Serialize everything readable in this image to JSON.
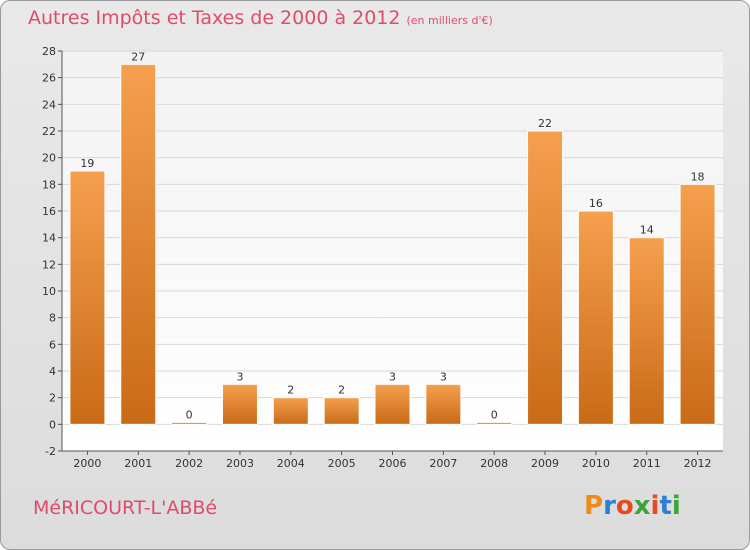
{
  "header": {
    "title": "Autres Impôts et Taxes de 2000 à 2012",
    "unit": "(en milliers d'€)"
  },
  "footer": {
    "commune": "MéRICOURT-L'ABBé",
    "logo": [
      "P",
      "r",
      "o",
      "x",
      "i",
      "t",
      "i"
    ]
  },
  "colors": {
    "bar_fill_top": "#f5a04f",
    "bar_fill_bottom": "#c96a16",
    "title": "#e04b6b",
    "logo": [
      "#f08a1c",
      "#2e7fd1",
      "#e9491f",
      "#3aa63a",
      "#e9491f",
      "#2e7fd1",
      "#3aa63a"
    ]
  },
  "chart_data": {
    "type": "bar",
    "categories": [
      "2000",
      "2001",
      "2002",
      "2003",
      "2004",
      "2005",
      "2006",
      "2007",
      "2008",
      "2009",
      "2010",
      "2011",
      "2012"
    ],
    "values": [
      19,
      27,
      0,
      3,
      2,
      2,
      3,
      3,
      0,
      22,
      16,
      14,
      18
    ],
    "title": "Autres Impôts et Taxes de 2000 à 2012",
    "subtitle": "(en milliers d'€)",
    "ylim": [
      -2,
      28
    ],
    "yticks": [
      -2,
      0,
      2,
      4,
      6,
      8,
      10,
      12,
      14,
      16,
      18,
      20,
      22,
      24,
      26,
      28
    ],
    "grid": true
  }
}
